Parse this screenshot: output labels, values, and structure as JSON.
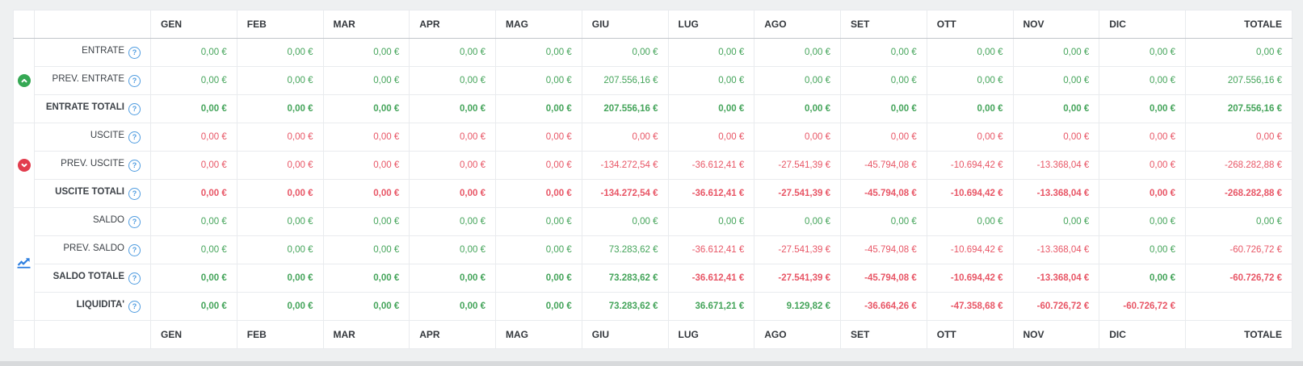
{
  "table": {
    "months": [
      "GEN",
      "FEB",
      "MAR",
      "APR",
      "MAG",
      "GIU",
      "LUG",
      "AGO",
      "SET",
      "OTT",
      "NOV",
      "DIC"
    ],
    "total_label": "TOTALE",
    "colors": {
      "positive": "#44a45a",
      "negative": "#e85666",
      "entrate_badge": "#35a854",
      "uscite_badge": "#e23d4e",
      "saldo_chart": "#2e7fe0",
      "help_blue": "#4f9ce0"
    },
    "icons": {
      "help_glyph": "?"
    },
    "groups": [
      {
        "name": "entrate",
        "icon": "circle-arrow-up-icon",
        "color": "#35a854",
        "rows": [
          0,
          1,
          2
        ],
        "interactable": false
      },
      {
        "name": "uscite",
        "icon": "circle-arrow-down-icon",
        "color": "#e23d4e",
        "rows": [
          3,
          4,
          5
        ],
        "interactable": false
      },
      {
        "name": "saldo",
        "icon": "line-chart-icon",
        "color": "#2e7fe0",
        "rows": [
          6,
          7,
          8,
          9
        ],
        "interactable": true
      }
    ],
    "rows": [
      {
        "label": "ENTRATE",
        "bold": false,
        "values": [
          "0,00 €",
          "0,00 €",
          "0,00 €",
          "0,00 €",
          "0,00 €",
          "0,00 €",
          "0,00 €",
          "0,00 €",
          "0,00 €",
          "0,00 €",
          "0,00 €",
          "0,00 €",
          "0,00 €"
        ],
        "colors": [
          "p",
          "p",
          "p",
          "p",
          "p",
          "p",
          "p",
          "p",
          "p",
          "p",
          "p",
          "p",
          "p"
        ]
      },
      {
        "label": "PREV. ENTRATE",
        "bold": false,
        "values": [
          "0,00 €",
          "0,00 €",
          "0,00 €",
          "0,00 €",
          "0,00 €",
          "207.556,16 €",
          "0,00 €",
          "0,00 €",
          "0,00 €",
          "0,00 €",
          "0,00 €",
          "0,00 €",
          "207.556,16 €"
        ],
        "colors": [
          "p",
          "p",
          "p",
          "p",
          "p",
          "p",
          "p",
          "p",
          "p",
          "p",
          "p",
          "p",
          "p"
        ]
      },
      {
        "label": "ENTRATE TOTALI",
        "bold": true,
        "values": [
          "0,00 €",
          "0,00 €",
          "0,00 €",
          "0,00 €",
          "0,00 €",
          "207.556,16 €",
          "0,00 €",
          "0,00 €",
          "0,00 €",
          "0,00 €",
          "0,00 €",
          "0,00 €",
          "207.556,16 €"
        ],
        "colors": [
          "p",
          "p",
          "p",
          "p",
          "p",
          "p",
          "p",
          "p",
          "p",
          "p",
          "p",
          "p",
          "p"
        ]
      },
      {
        "label": "USCITE",
        "bold": false,
        "values": [
          "0,00 €",
          "0,00 €",
          "0,00 €",
          "0,00 €",
          "0,00 €",
          "0,00 €",
          "0,00 €",
          "0,00 €",
          "0,00 €",
          "0,00 €",
          "0,00 €",
          "0,00 €",
          "0,00 €"
        ],
        "colors": [
          "n",
          "n",
          "n",
          "n",
          "n",
          "n",
          "n",
          "n",
          "n",
          "n",
          "n",
          "n",
          "n"
        ]
      },
      {
        "label": "PREV. USCITE",
        "bold": false,
        "values": [
          "0,00 €",
          "0,00 €",
          "0,00 €",
          "0,00 €",
          "0,00 €",
          "-134.272,54 €",
          "-36.612,41 €",
          "-27.541,39 €",
          "-45.794,08 €",
          "-10.694,42 €",
          "-13.368,04 €",
          "0,00 €",
          "-268.282,88 €"
        ],
        "colors": [
          "n",
          "n",
          "n",
          "n",
          "n",
          "n",
          "n",
          "n",
          "n",
          "n",
          "n",
          "n",
          "n"
        ]
      },
      {
        "label": "USCITE TOTALI",
        "bold": true,
        "values": [
          "0,00 €",
          "0,00 €",
          "0,00 €",
          "0,00 €",
          "0,00 €",
          "-134.272,54 €",
          "-36.612,41 €",
          "-27.541,39 €",
          "-45.794,08 €",
          "-10.694,42 €",
          "-13.368,04 €",
          "0,00 €",
          "-268.282,88 €"
        ],
        "colors": [
          "n",
          "n",
          "n",
          "n",
          "n",
          "n",
          "n",
          "n",
          "n",
          "n",
          "n",
          "n",
          "n"
        ]
      },
      {
        "label": "SALDO",
        "bold": false,
        "values": [
          "0,00 €",
          "0,00 €",
          "0,00 €",
          "0,00 €",
          "0,00 €",
          "0,00 €",
          "0,00 €",
          "0,00 €",
          "0,00 €",
          "0,00 €",
          "0,00 €",
          "0,00 €",
          "0,00 €"
        ],
        "colors": [
          "p",
          "p",
          "p",
          "p",
          "p",
          "p",
          "p",
          "p",
          "p",
          "p",
          "p",
          "p",
          "p"
        ]
      },
      {
        "label": "PREV. SALDO",
        "bold": false,
        "values": [
          "0,00 €",
          "0,00 €",
          "0,00 €",
          "0,00 €",
          "0,00 €",
          "73.283,62 €",
          "-36.612,41 €",
          "-27.541,39 €",
          "-45.794,08 €",
          "-10.694,42 €",
          "-13.368,04 €",
          "0,00 €",
          "-60.726,72 €"
        ],
        "colors": [
          "p",
          "p",
          "p",
          "p",
          "p",
          "p",
          "n",
          "n",
          "n",
          "n",
          "n",
          "p",
          "n"
        ]
      },
      {
        "label": "SALDO TOTALE",
        "bold": true,
        "values": [
          "0,00 €",
          "0,00 €",
          "0,00 €",
          "0,00 €",
          "0,00 €",
          "73.283,62 €",
          "-36.612,41 €",
          "-27.541,39 €",
          "-45.794,08 €",
          "-10.694,42 €",
          "-13.368,04 €",
          "0,00 €",
          "-60.726,72 €"
        ],
        "colors": [
          "p",
          "p",
          "p",
          "p",
          "p",
          "p",
          "n",
          "n",
          "n",
          "n",
          "n",
          "p",
          "n"
        ]
      },
      {
        "label": "LIQUIDITA'",
        "bold": true,
        "values": [
          "0,00 €",
          "0,00 €",
          "0,00 €",
          "0,00 €",
          "0,00 €",
          "73.283,62 €",
          "36.671,21 €",
          "9.129,82 €",
          "-36.664,26 €",
          "-47.358,68 €",
          "-60.726,72 €",
          "-60.726,72 €",
          ""
        ],
        "colors": [
          "p",
          "p",
          "p",
          "p",
          "p",
          "p",
          "p",
          "p",
          "n",
          "n",
          "n",
          "n",
          ""
        ]
      }
    ]
  }
}
